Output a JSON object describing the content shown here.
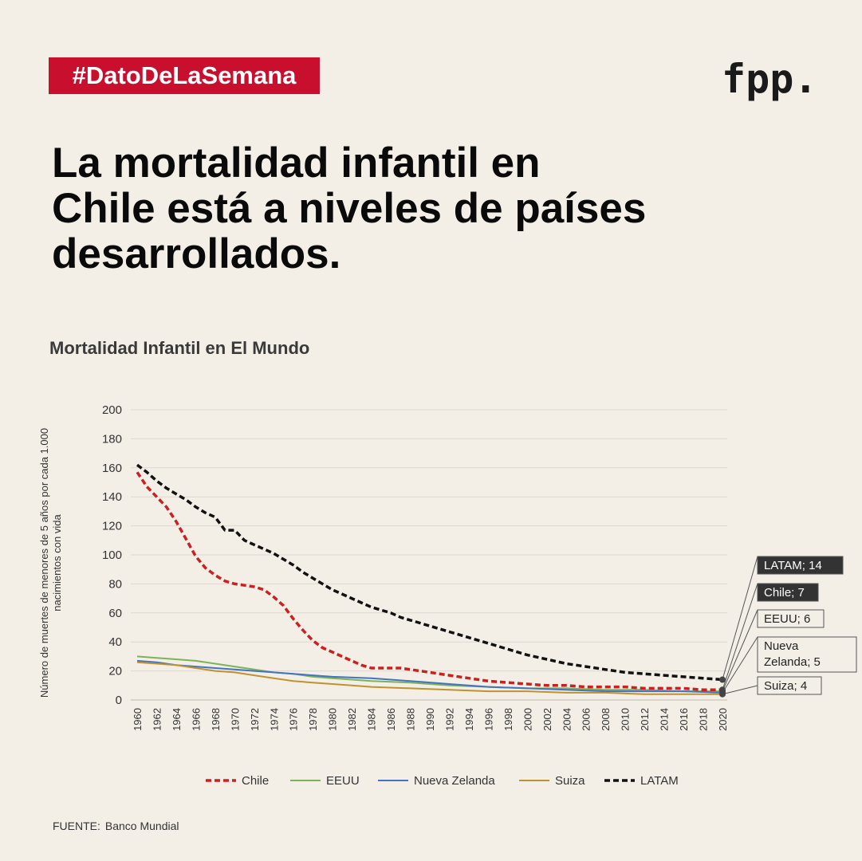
{
  "header": {
    "hashtag": "#DatoDeLaSemana",
    "logo": "fpp.",
    "headline_lines": [
      "La mortalidad infantil en",
      "Chile está a niveles de países",
      "desarrollados."
    ],
    "chart_heading": "Mortalidad Infantil en El Mundo"
  },
  "footer": {
    "source_label": "FUENTE:",
    "source_value": "Banco Mundial"
  },
  "colors": {
    "background": "#f3efe7",
    "tag": "#c8102e",
    "chile": "#c8211f",
    "eeuu": "#7db356",
    "nueva_zelanda": "#4472c4",
    "suiza": "#c0922f",
    "latam": "#111111"
  },
  "chart_data": {
    "type": "line",
    "ylabel": "Número de muertes de menores de 5 años por cada 1.000 nacimientos con vida",
    "ylim": [
      0,
      200
    ],
    "yticks": [
      0,
      20,
      40,
      60,
      80,
      100,
      120,
      140,
      160,
      180,
      200
    ],
    "xlim": [
      1960,
      2020
    ],
    "xticks": [
      1960,
      1962,
      1964,
      1966,
      1968,
      1970,
      1972,
      1974,
      1976,
      1978,
      1980,
      1982,
      1984,
      1986,
      1988,
      1990,
      1992,
      1994,
      1996,
      1998,
      2000,
      2002,
      2004,
      2006,
      2008,
      2010,
      2012,
      2014,
      2016,
      2018,
      2020
    ],
    "grid": true,
    "legend_position": "bottom",
    "series": [
      {
        "name": "Chile",
        "color": "#c8211f",
        "dash": true,
        "end_label": "Chile; 7",
        "x": [
          1960,
          1961,
          1962,
          1963,
          1964,
          1965,
          1966,
          1967,
          1968,
          1969,
          1970,
          1971,
          1972,
          1973,
          1974,
          1975,
          1976,
          1977,
          1978,
          1979,
          1980,
          1981,
          1982,
          1983,
          1984,
          1985,
          1986,
          1987,
          1988,
          1989,
          1990,
          1992,
          1994,
          1996,
          1998,
          2000,
          2002,
          2004,
          2006,
          2008,
          2010,
          2012,
          2014,
          2016,
          2018,
          2020
        ],
        "y": [
          157,
          147,
          140,
          133,
          123,
          111,
          99,
          91,
          86,
          82,
          80,
          79,
          78,
          76,
          71,
          65,
          56,
          48,
          41,
          36,
          33,
          30,
          27,
          24,
          22,
          22,
          22,
          22,
          21,
          20,
          19,
          17,
          15,
          13,
          12,
          11,
          10,
          10,
          9,
          9,
          9,
          8,
          8,
          8,
          7,
          7
        ]
      },
      {
        "name": "EEUU",
        "color": "#7db356",
        "dash": false,
        "end_label": "EEUU; 6",
        "x": [
          1960,
          1962,
          1964,
          1966,
          1968,
          1970,
          1972,
          1974,
          1976,
          1978,
          1980,
          1984,
          1988,
          1992,
          1996,
          2000,
          2004,
          2008,
          2012,
          2016,
          2020
        ],
        "y": [
          30,
          29,
          28,
          27,
          25,
          23,
          21,
          19,
          18,
          16,
          15,
          13,
          12,
          10,
          9,
          8,
          8,
          7,
          7,
          6,
          6
        ]
      },
      {
        "name": "Nueva Zelanda",
        "color": "#4472c4",
        "dash": false,
        "end_label": "Nueva Zelanda; 5",
        "x": [
          1960,
          1962,
          1964,
          1966,
          1968,
          1970,
          1972,
          1974,
          1976,
          1978,
          1980,
          1984,
          1986,
          1988,
          1992,
          1996,
          2000,
          2004,
          2008,
          2012,
          2016,
          2020
        ],
        "y": [
          27,
          26,
          24,
          23,
          22,
          21,
          20,
          19,
          18,
          17,
          16,
          15,
          14,
          13,
          11,
          9,
          8,
          7,
          6,
          6,
          6,
          5
        ]
      },
      {
        "name": "Suiza",
        "color": "#c0922f",
        "dash": false,
        "end_label": "Suiza; 4",
        "x": [
          1960,
          1962,
          1964,
          1966,
          1968,
          1970,
          1972,
          1974,
          1976,
          1978,
          1980,
          1982,
          1984,
          1988,
          1992,
          1996,
          2000,
          2004,
          2008,
          2012,
          2016,
          2020
        ],
        "y": [
          26,
          25,
          24,
          22,
          20,
          19,
          17,
          15,
          13,
          12,
          11,
          10,
          9,
          8,
          7,
          6,
          6,
          5,
          5,
          4,
          4,
          4
        ]
      },
      {
        "name": "LATAM",
        "color": "#111111",
        "dash": true,
        "end_label": "LATAM; 14",
        "x": [
          1960,
          1961,
          1962,
          1963,
          1964,
          1965,
          1966,
          1967,
          1968,
          1969,
          1970,
          1971,
          1972,
          1973,
          1974,
          1975,
          1976,
          1977,
          1978,
          1979,
          1980,
          1981,
          1982,
          1983,
          1984,
          1985,
          1986,
          1987,
          1988,
          1989,
          1990,
          1992,
          1994,
          1996,
          1998,
          2000,
          2002,
          2004,
          2006,
          2008,
          2010,
          2012,
          2014,
          2016,
          2018,
          2020
        ],
        "y": [
          162,
          157,
          151,
          146,
          142,
          138,
          133,
          129,
          126,
          117,
          117,
          110,
          107,
          104,
          101,
          97,
          93,
          88,
          84,
          80,
          76,
          73,
          70,
          67,
          64,
          62,
          60,
          57,
          55,
          53,
          51,
          47,
          43,
          39,
          35,
          31,
          28,
          25,
          23,
          21,
          19,
          18,
          17,
          16,
          15,
          14
        ]
      }
    ]
  }
}
